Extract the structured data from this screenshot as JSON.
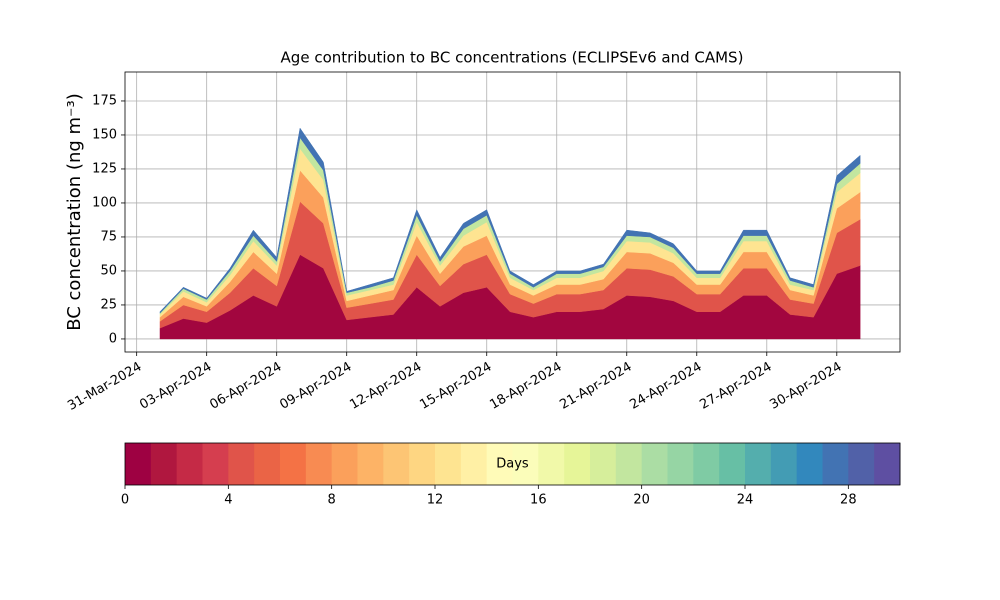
{
  "chart_data": {
    "type": "stacked_area",
    "title": "Age contribution to BC concentrations (ECLIPSEv6 and CAMS)",
    "y_label": "BC concentration (ng m⁻³)",
    "x": [
      "2024-04-01",
      "2024-04-02",
      "2024-04-03",
      "2024-04-04",
      "2024-04-05",
      "2024-04-06",
      "2024-04-07",
      "2024-04-08",
      "2024-04-09",
      "2024-04-10",
      "2024-04-11",
      "2024-04-12",
      "2024-04-13",
      "2024-04-14",
      "2024-04-15",
      "2024-04-16",
      "2024-04-17",
      "2024-04-18",
      "2024-04-19",
      "2024-04-20",
      "2024-04-21",
      "2024-04-22",
      "2024-04-23",
      "2024-04-24",
      "2024-04-25",
      "2024-04-26",
      "2024-04-27",
      "2024-04-28",
      "2024-04-29",
      "2024-04-30",
      "2024-05-01"
    ],
    "series": [
      {
        "color": "#a2063f",
        "values": [
          8,
          15,
          12,
          21,
          32,
          24,
          62,
          52,
          14,
          16,
          18,
          38,
          24,
          34,
          38,
          20,
          16,
          20,
          20,
          22,
          32,
          31,
          28,
          20,
          20,
          32,
          32,
          18,
          16,
          48,
          54
        ]
      },
      {
        "color": "#e0544a",
        "values": [
          5,
          10,
          8,
          13,
          20,
          15,
          39,
          33,
          9,
          10,
          11,
          24,
          15,
          21,
          24,
          13,
          10,
          13,
          13,
          14,
          20,
          20,
          18,
          13,
          13,
          20,
          20,
          11,
          10,
          30,
          34
        ]
      },
      {
        "color": "#fba05b",
        "values": [
          3,
          6,
          4,
          8,
          12,
          9,
          23,
          19,
          5,
          6,
          7,
          14,
          9,
          13,
          14,
          7,
          6,
          7,
          7,
          8,
          12,
          12,
          10,
          7,
          7,
          12,
          12,
          7,
          6,
          18,
          20
        ]
      },
      {
        "color": "#fee491",
        "values": [
          2,
          4,
          3,
          5,
          8,
          6,
          16,
          13,
          4,
          4,
          4,
          10,
          6,
          8,
          10,
          5,
          4,
          5,
          5,
          6,
          8,
          8,
          7,
          5,
          5,
          8,
          8,
          4,
          4,
          12,
          14
        ]
      },
      {
        "color": "#c2e69f",
        "values": [
          1,
          2,
          2,
          3,
          4,
          3,
          8,
          7,
          2,
          2,
          3,
          5,
          3,
          5,
          5,
          3,
          2,
          3,
          3,
          3,
          4,
          4,
          4,
          3,
          3,
          4,
          4,
          3,
          2,
          6,
          7
        ]
      },
      {
        "color": "#4273b3",
        "values": [
          1,
          1,
          1,
          2,
          4,
          3,
          7,
          6,
          1,
          2,
          2,
          4,
          3,
          4,
          4,
          2,
          2,
          2,
          2,
          2,
          4,
          3,
          3,
          2,
          2,
          4,
          4,
          2,
          2,
          6,
          6
        ]
      }
    ],
    "xlim": [
      "2024-03-30T12:00",
      "2024-05-02T17:00"
    ],
    "xticks": [
      {
        "value": "2024-03-31",
        "label": "31-Mar-2024"
      },
      {
        "value": "2024-04-03",
        "label": "03-Apr-2024"
      },
      {
        "value": "2024-04-06",
        "label": "06-Apr-2024"
      },
      {
        "value": "2024-04-09",
        "label": "09-Apr-2024"
      },
      {
        "value": "2024-04-12",
        "label": "12-Apr-2024"
      },
      {
        "value": "2024-04-15",
        "label": "15-Apr-2024"
      },
      {
        "value": "2024-04-18",
        "label": "18-Apr-2024"
      },
      {
        "value": "2024-04-21",
        "label": "21-Apr-2024"
      },
      {
        "value": "2024-04-24",
        "label": "24-Apr-2024"
      },
      {
        "value": "2024-04-27",
        "label": "27-Apr-2024"
      },
      {
        "value": "2024-04-30",
        "label": "30-Apr-2024"
      }
    ],
    "ylim": [
      -9.6,
      196.3
    ],
    "yticks": [
      0,
      25,
      50,
      75,
      100,
      125,
      150,
      175
    ],
    "grid": true,
    "colorbar": {
      "label": "Days",
      "lim": [
        0,
        30
      ],
      "ticks": [
        0,
        4,
        8,
        12,
        16,
        20,
        24,
        28
      ],
      "colors": [
        "#9e0142",
        "#b0173f",
        "#c52a46",
        "#d53e4f",
        "#e0544a",
        "#ea6446",
        "#f47245",
        "#f88b52",
        "#fba05b",
        "#fdb366",
        "#fdc574",
        "#fed682",
        "#fee491",
        "#fff0a5",
        "#fffbb8",
        "#fbfdba",
        "#f1f9a9",
        "#e6f598",
        "#d6ee9b",
        "#c2e69f",
        "#abdda4",
        "#96d5a4",
        "#7fcba4",
        "#67bfa5",
        "#54aead",
        "#439cb4",
        "#3288bd",
        "#4273b3",
        "#5161a8",
        "#5e4fa2"
      ]
    }
  }
}
